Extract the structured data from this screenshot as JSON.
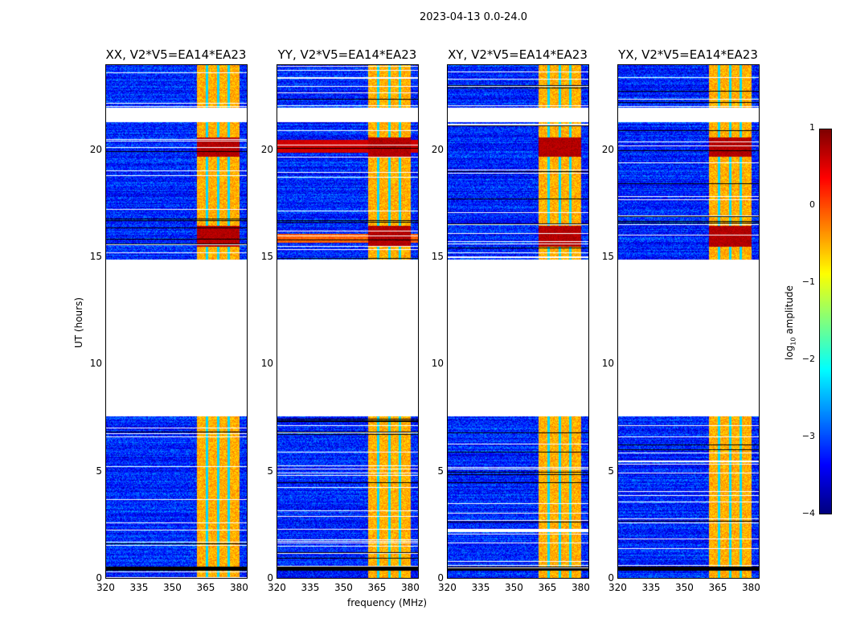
{
  "suptitle": "2023-04-13 0.0-24.0",
  "chart_data": {
    "type": "heatmap",
    "xlabel": "frequency (MHz)",
    "ylabel": "UT (hours)",
    "xlim": [
      320,
      384
    ],
    "ylim": [
      0,
      24
    ],
    "xticks": [
      "320",
      "335",
      "350",
      "365",
      "380"
    ],
    "xtick_values": [
      320,
      335,
      350,
      365,
      380
    ],
    "yticks": [
      "0",
      "5",
      "10",
      "15",
      "20"
    ],
    "ytick_values": [
      0,
      5,
      10,
      15,
      20
    ],
    "panels": [
      {
        "title": "XX, V2*V5=EA14*EA23",
        "pol": "XX"
      },
      {
        "title": "YY, V2*V5=EA14*EA23",
        "pol": "YY"
      },
      {
        "title": "XY, V2*V5=EA14*EA23",
        "pol": "XY"
      },
      {
        "title": "YX, V2*V5=EA14*EA23",
        "pol": "YX"
      }
    ],
    "data_time_ranges_hours": [
      [
        0,
        7.6
      ],
      [
        14.9,
        21.3
      ],
      [
        22.0,
        24
      ]
    ],
    "flagged_gap_hours": [
      7.6,
      14.9
    ],
    "bright_band_mhz": [
      360.5,
      380
    ],
    "band_gaps_mhz": [
      365.1,
      370.2,
      374.9
    ],
    "strong_emission_hours": [
      [
        15.5,
        16.5
      ],
      [
        19.7,
        20.6
      ]
    ],
    "background_log10_amplitude": -3.2,
    "band_log10_amplitude": -0.6,
    "colorbar": {
      "label": "log10 amplitude",
      "label_main": "log",
      "label_sub": "10",
      "label_rest": " amplitude",
      "range": [
        -4,
        1
      ],
      "ticks": [
        "1",
        "0",
        "−1",
        "−2",
        "−3",
        "−4"
      ],
      "tick_values": [
        1,
        0,
        -1,
        -2,
        -3,
        -4
      ],
      "colormap": "jet"
    }
  }
}
